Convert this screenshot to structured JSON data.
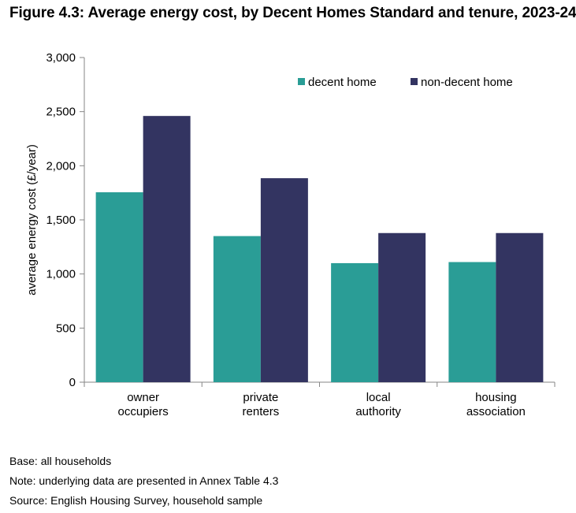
{
  "title": "Figure 4.3: Average energy cost, by Decent Homes Standard and tenure, 2023-24",
  "notes": {
    "base": "Base: all households",
    "note": "Note: underlying data are presented in Annex Table 4.3",
    "source": "Source: English Housing Survey, household sample"
  },
  "colors": {
    "decent": "#2a9d96",
    "non_decent": "#333461",
    "axis": "#868686"
  },
  "chart_data": {
    "type": "bar",
    "title": "",
    "xlabel": "",
    "ylabel": "average energy cost (£/year)",
    "ylim": [
      0,
      3000
    ],
    "yticks": [
      0,
      500,
      1000,
      1500,
      2000,
      2500,
      3000
    ],
    "ytick_labels": [
      "0",
      "500",
      "1,000",
      "1,500",
      "2,000",
      "2,500",
      "3,000"
    ],
    "categories": [
      [
        "owner",
        "occupiers"
      ],
      [
        "private",
        "renters"
      ],
      [
        "local",
        "authority"
      ],
      [
        "housing",
        "association"
      ]
    ],
    "series": [
      {
        "name": "decent home",
        "values": [
          1755,
          1350,
          1100,
          1110
        ]
      },
      {
        "name": "non-decent home",
        "values": [
          2460,
          1885,
          1378,
          1378
        ]
      }
    ],
    "legend_position": "top-right"
  }
}
